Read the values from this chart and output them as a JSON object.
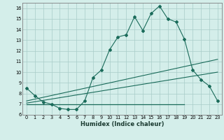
{
  "xlabel": "Humidex (Indice chaleur)",
  "bg_color": "#d4eeea",
  "grid_color": "#a8ccc8",
  "line_color": "#1a6b5a",
  "xlim": [
    -0.5,
    23.5
  ],
  "ylim": [
    6.0,
    16.5
  ],
  "xticks": [
    0,
    1,
    2,
    3,
    4,
    5,
    6,
    7,
    8,
    9,
    10,
    11,
    12,
    13,
    14,
    15,
    16,
    17,
    18,
    19,
    20,
    21,
    22,
    23
  ],
  "yticks": [
    6,
    7,
    8,
    9,
    10,
    11,
    12,
    13,
    14,
    15,
    16
  ],
  "curve1_x": [
    0,
    1,
    2,
    3,
    4,
    5,
    6,
    7,
    8,
    9,
    10,
    11,
    12,
    13,
    14,
    15,
    16,
    17,
    18,
    19,
    20,
    21,
    22,
    23
  ],
  "curve1_y": [
    8.5,
    7.8,
    7.2,
    7.0,
    6.6,
    6.5,
    6.5,
    7.3,
    9.5,
    10.2,
    12.1,
    13.3,
    13.5,
    15.2,
    13.9,
    15.5,
    16.2,
    15.0,
    14.7,
    13.1,
    10.2,
    9.3,
    8.7,
    7.3
  ],
  "line1_x": [
    0,
    23
  ],
  "line1_y": [
    7.3,
    11.2
  ],
  "line2_x": [
    0,
    23
  ],
  "line2_y": [
    7.1,
    10.0
  ],
  "line3_x": [
    0,
    19
  ],
  "line3_y": [
    7.0,
    7.0
  ],
  "xlabel_fontsize": 6.0,
  "tick_fontsize": 4.8
}
